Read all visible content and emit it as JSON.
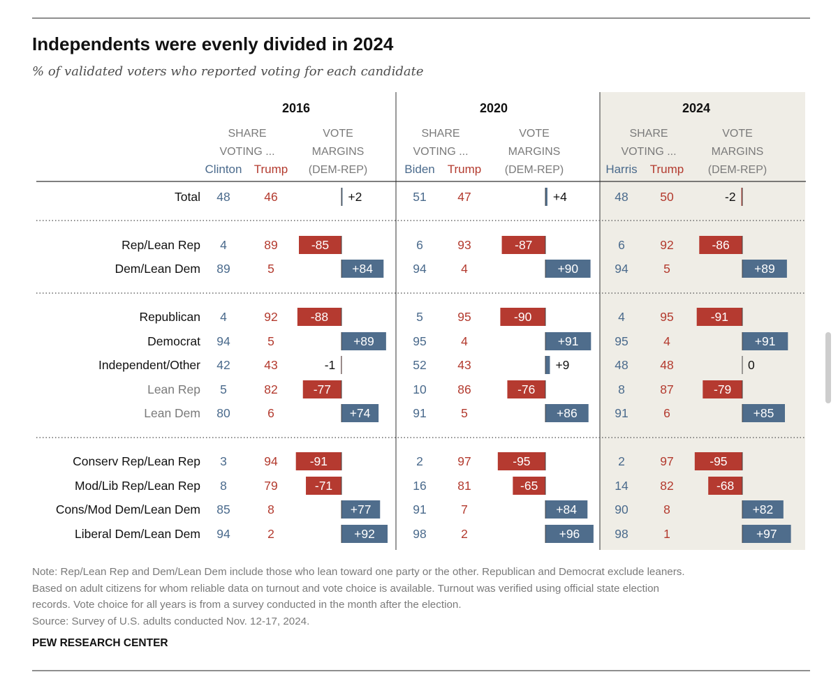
{
  "title": "Independents were evenly divided in 2024",
  "subtitle": "% of validated voters who reported voting for each candidate",
  "note_lines": [
    "Note: Rep/Lean Rep and Dem/Lean Dem include those who lean toward one party or the other. Republican and Democrat exclude leaners.",
    "Based on adult citizens for whom reliable data on turnout and vote choice is available. Turnout was verified using official state election",
    "records. Vote choice for all years is from a survey conducted in the month after the election."
  ],
  "survey_source": "Source: Survey of U.S. adults conducted Nov. 12-17, 2024.",
  "org": "PEW RESEARCH CENTER",
  "chart_data": {
    "type": "table",
    "subheaders": {
      "share_line1": "SHARE",
      "share_line2": "VOTING ...",
      "margin_line1": "VOTE",
      "margin_line2": "MARGINS",
      "margin_line3": "(DEM-REP)"
    },
    "years": [
      {
        "label": "2016",
        "dem": "Clinton",
        "rep": "Trump"
      },
      {
        "label": "2020",
        "dem": "Biden",
        "rep": "Trump"
      },
      {
        "label": "2024",
        "dem": "Harris",
        "rep": "Trump"
      }
    ],
    "colors": {
      "dem": "#4a6a8c",
      "rep": "#b33a2e",
      "bar_dem": "#4f6d8c",
      "bar_rep": "#b53a30",
      "highlight": "#efede6",
      "label_gray": "#7a7a7a"
    },
    "margin_scale": [
      -100,
      100
    ],
    "rows": [
      {
        "label": "Total",
        "group": 0,
        "muted": false,
        "values": [
          [
            48,
            46,
            "+2"
          ],
          [
            51,
            47,
            "+4"
          ],
          [
            48,
            50,
            "-2"
          ]
        ],
        "margins": [
          2,
          4,
          -2
        ]
      },
      {
        "label": "Rep/Lean Rep",
        "group": 1,
        "muted": false,
        "values": [
          [
            4,
            89,
            "-85"
          ],
          [
            6,
            93,
            "-87"
          ],
          [
            6,
            92,
            "-86"
          ]
        ],
        "margins": [
          -85,
          -87,
          -86
        ]
      },
      {
        "label": "Dem/Lean Dem",
        "group": 1,
        "muted": false,
        "values": [
          [
            89,
            5,
            "+84"
          ],
          [
            94,
            4,
            "+90"
          ],
          [
            94,
            5,
            "+89"
          ]
        ],
        "margins": [
          84,
          90,
          89
        ]
      },
      {
        "label": "Republican",
        "group": 2,
        "muted": false,
        "values": [
          [
            4,
            92,
            "-88"
          ],
          [
            5,
            95,
            "-90"
          ],
          [
            4,
            95,
            "-91"
          ]
        ],
        "margins": [
          -88,
          -90,
          -91
        ]
      },
      {
        "label": "Democrat",
        "group": 2,
        "muted": false,
        "values": [
          [
            94,
            5,
            "+89"
          ],
          [
            95,
            4,
            "+91"
          ],
          [
            95,
            4,
            "+91"
          ]
        ],
        "margins": [
          89,
          91,
          91
        ]
      },
      {
        "label": "Independent/Other",
        "group": 2,
        "muted": false,
        "values": [
          [
            42,
            43,
            "-1"
          ],
          [
            52,
            43,
            "+9"
          ],
          [
            48,
            48,
            "0"
          ]
        ],
        "margins": [
          -1,
          9,
          0
        ]
      },
      {
        "label": "Lean Rep",
        "group": 2,
        "muted": true,
        "values": [
          [
            5,
            82,
            "-77"
          ],
          [
            10,
            86,
            "-76"
          ],
          [
            8,
            87,
            "-79"
          ]
        ],
        "margins": [
          -77,
          -76,
          -79
        ]
      },
      {
        "label": "Lean Dem",
        "group": 2,
        "muted": true,
        "values": [
          [
            80,
            6,
            "+74"
          ],
          [
            91,
            5,
            "+86"
          ],
          [
            91,
            6,
            "+85"
          ]
        ],
        "margins": [
          74,
          86,
          85
        ]
      },
      {
        "label": "Conserv Rep/Lean Rep",
        "group": 3,
        "muted": false,
        "values": [
          [
            3,
            94,
            "-91"
          ],
          [
            2,
            97,
            "-95"
          ],
          [
            2,
            97,
            "-95"
          ]
        ],
        "margins": [
          -91,
          -95,
          -95
        ]
      },
      {
        "label": "Mod/Lib Rep/Lean Rep",
        "group": 3,
        "muted": false,
        "values": [
          [
            8,
            79,
            "-71"
          ],
          [
            16,
            81,
            "-65"
          ],
          [
            14,
            82,
            "-68"
          ]
        ],
        "margins": [
          -71,
          -65,
          -68
        ]
      },
      {
        "label": "Cons/Mod Dem/Lean Dem",
        "group": 3,
        "muted": false,
        "values": [
          [
            85,
            8,
            "+77"
          ],
          [
            91,
            7,
            "+84"
          ],
          [
            90,
            8,
            "+82"
          ]
        ],
        "margins": [
          77,
          84,
          82
        ]
      },
      {
        "label": "Liberal Dem/Lean Dem",
        "group": 3,
        "muted": false,
        "values": [
          [
            94,
            2,
            "+92"
          ],
          [
            98,
            2,
            "+96"
          ],
          [
            98,
            1,
            "+97"
          ]
        ],
        "margins": [
          92,
          96,
          97
        ]
      }
    ]
  }
}
